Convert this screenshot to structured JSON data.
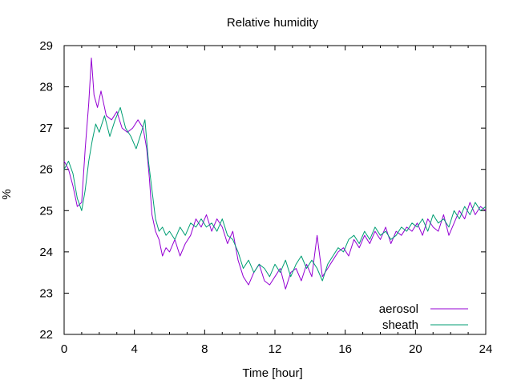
{
  "chart_data": {
    "type": "line",
    "title": "Relative humidity",
    "xlabel": "Time [hour]",
    "ylabel": "%",
    "xlim": [
      0,
      24
    ],
    "ylim": [
      22,
      29
    ],
    "xticks": [
      "0",
      "4",
      "8",
      "12",
      "16",
      "20",
      "24"
    ],
    "yticks": [
      "22",
      "23",
      "24",
      "25",
      "26",
      "27",
      "28",
      "29"
    ],
    "grid": false,
    "legend_position": "bottom-right",
    "series": [
      {
        "name": "aerosol",
        "color": "#9400d3",
        "points": [
          [
            0,
            26.2
          ],
          [
            0.25,
            26.0
          ],
          [
            0.5,
            25.6
          ],
          [
            0.75,
            25.1
          ],
          [
            1.0,
            25.2
          ],
          [
            1.2,
            26.5
          ],
          [
            1.4,
            27.6
          ],
          [
            1.55,
            28.7
          ],
          [
            1.7,
            27.8
          ],
          [
            1.9,
            27.5
          ],
          [
            2.1,
            27.9
          ],
          [
            2.4,
            27.3
          ],
          [
            2.7,
            27.2
          ],
          [
            3.0,
            27.4
          ],
          [
            3.3,
            27.0
          ],
          [
            3.6,
            26.9
          ],
          [
            3.9,
            27.0
          ],
          [
            4.2,
            27.2
          ],
          [
            4.5,
            27.0
          ],
          [
            4.7,
            26.5
          ],
          [
            4.85,
            25.8
          ],
          [
            5.0,
            24.9
          ],
          [
            5.2,
            24.5
          ],
          [
            5.4,
            24.3
          ],
          [
            5.6,
            23.9
          ],
          [
            5.8,
            24.1
          ],
          [
            6.0,
            24.0
          ],
          [
            6.3,
            24.3
          ],
          [
            6.6,
            23.9
          ],
          [
            6.9,
            24.2
          ],
          [
            7.2,
            24.4
          ],
          [
            7.5,
            24.8
          ],
          [
            7.8,
            24.6
          ],
          [
            8.1,
            24.9
          ],
          [
            8.4,
            24.5
          ],
          [
            8.7,
            24.8
          ],
          [
            9.0,
            24.6
          ],
          [
            9.3,
            24.2
          ],
          [
            9.6,
            24.5
          ],
          [
            9.9,
            23.8
          ],
          [
            10.2,
            23.4
          ],
          [
            10.5,
            23.2
          ],
          [
            10.8,
            23.5
          ],
          [
            11.1,
            23.7
          ],
          [
            11.4,
            23.3
          ],
          [
            11.7,
            23.2
          ],
          [
            12.0,
            23.4
          ],
          [
            12.3,
            23.6
          ],
          [
            12.6,
            23.1
          ],
          [
            12.9,
            23.5
          ],
          [
            13.2,
            23.6
          ],
          [
            13.5,
            23.3
          ],
          [
            13.8,
            23.7
          ],
          [
            14.1,
            23.4
          ],
          [
            14.4,
            24.4
          ],
          [
            14.7,
            23.4
          ],
          [
            15.0,
            23.6
          ],
          [
            15.3,
            23.8
          ],
          [
            15.6,
            24.0
          ],
          [
            15.9,
            24.1
          ],
          [
            16.2,
            23.9
          ],
          [
            16.5,
            24.3
          ],
          [
            16.8,
            24.1
          ],
          [
            17.1,
            24.4
          ],
          [
            17.4,
            24.2
          ],
          [
            17.7,
            24.5
          ],
          [
            18.0,
            24.3
          ],
          [
            18.3,
            24.6
          ],
          [
            18.6,
            24.2
          ],
          [
            18.9,
            24.5
          ],
          [
            19.2,
            24.4
          ],
          [
            19.5,
            24.6
          ],
          [
            19.8,
            24.5
          ],
          [
            20.1,
            24.7
          ],
          [
            20.4,
            24.4
          ],
          [
            20.7,
            24.8
          ],
          [
            21.0,
            24.6
          ],
          [
            21.3,
            24.5
          ],
          [
            21.6,
            24.9
          ],
          [
            21.9,
            24.4
          ],
          [
            22.2,
            24.7
          ],
          [
            22.5,
            25.0
          ],
          [
            22.8,
            24.8
          ],
          [
            23.1,
            25.2
          ],
          [
            23.4,
            24.9
          ],
          [
            23.7,
            25.1
          ],
          [
            24.0,
            25.0
          ]
        ]
      },
      {
        "name": "sheath",
        "color": "#009e73",
        "points": [
          [
            0,
            26.0
          ],
          [
            0.25,
            26.2
          ],
          [
            0.5,
            25.9
          ],
          [
            0.75,
            25.3
          ],
          [
            1.0,
            25.0
          ],
          [
            1.2,
            25.5
          ],
          [
            1.4,
            26.2
          ],
          [
            1.6,
            26.7
          ],
          [
            1.8,
            27.1
          ],
          [
            2.0,
            26.9
          ],
          [
            2.3,
            27.3
          ],
          [
            2.6,
            26.8
          ],
          [
            2.9,
            27.2
          ],
          [
            3.2,
            27.5
          ],
          [
            3.5,
            27.0
          ],
          [
            3.8,
            26.8
          ],
          [
            4.1,
            26.5
          ],
          [
            4.4,
            26.9
          ],
          [
            4.6,
            27.2
          ],
          [
            4.8,
            26.2
          ],
          [
            5.0,
            25.5
          ],
          [
            5.2,
            24.8
          ],
          [
            5.4,
            24.5
          ],
          [
            5.6,
            24.6
          ],
          [
            5.8,
            24.4
          ],
          [
            6.0,
            24.5
          ],
          [
            6.3,
            24.3
          ],
          [
            6.6,
            24.6
          ],
          [
            6.9,
            24.4
          ],
          [
            7.2,
            24.7
          ],
          [
            7.5,
            24.6
          ],
          [
            7.8,
            24.8
          ],
          [
            8.1,
            24.6
          ],
          [
            8.4,
            24.7
          ],
          [
            8.7,
            24.5
          ],
          [
            9.0,
            24.8
          ],
          [
            9.3,
            24.4
          ],
          [
            9.6,
            24.3
          ],
          [
            9.9,
            24.0
          ],
          [
            10.2,
            23.6
          ],
          [
            10.5,
            23.8
          ],
          [
            10.8,
            23.5
          ],
          [
            11.1,
            23.7
          ],
          [
            11.4,
            23.6
          ],
          [
            11.7,
            23.4
          ],
          [
            12.0,
            23.7
          ],
          [
            12.3,
            23.5
          ],
          [
            12.6,
            23.8
          ],
          [
            12.9,
            23.4
          ],
          [
            13.2,
            23.7
          ],
          [
            13.5,
            23.9
          ],
          [
            13.8,
            23.6
          ],
          [
            14.1,
            23.8
          ],
          [
            14.4,
            23.6
          ],
          [
            14.7,
            23.3
          ],
          [
            15.0,
            23.7
          ],
          [
            15.3,
            23.9
          ],
          [
            15.6,
            24.1
          ],
          [
            15.9,
            24.0
          ],
          [
            16.2,
            24.3
          ],
          [
            16.5,
            24.4
          ],
          [
            16.8,
            24.2
          ],
          [
            17.1,
            24.5
          ],
          [
            17.4,
            24.3
          ],
          [
            17.7,
            24.6
          ],
          [
            18.0,
            24.4
          ],
          [
            18.3,
            24.5
          ],
          [
            18.6,
            24.3
          ],
          [
            18.9,
            24.4
          ],
          [
            19.2,
            24.6
          ],
          [
            19.5,
            24.5
          ],
          [
            19.8,
            24.7
          ],
          [
            20.1,
            24.6
          ],
          [
            20.4,
            24.8
          ],
          [
            20.7,
            24.5
          ],
          [
            21.0,
            24.9
          ],
          [
            21.3,
            24.7
          ],
          [
            21.6,
            24.8
          ],
          [
            21.9,
            24.6
          ],
          [
            22.2,
            25.0
          ],
          [
            22.5,
            24.8
          ],
          [
            22.8,
            25.1
          ],
          [
            23.1,
            24.9
          ],
          [
            23.4,
            25.2
          ],
          [
            23.7,
            25.0
          ],
          [
            24.0,
            25.1
          ]
        ]
      }
    ]
  }
}
